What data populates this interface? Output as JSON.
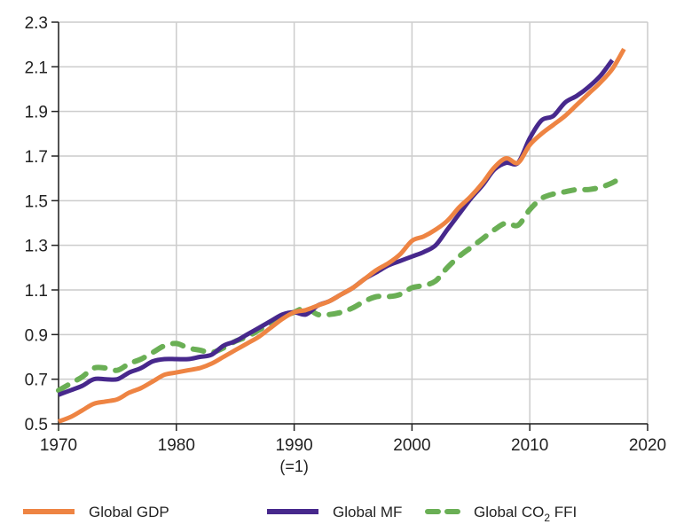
{
  "chart_data": {
    "type": "line",
    "title": "",
    "xlabel": "",
    "ylabel": "",
    "xlim": [
      1970,
      2020
    ],
    "ylim": [
      0.5,
      2.3
    ],
    "x_ticks": [
      1970,
      1980,
      1990,
      2000,
      2010,
      2020
    ],
    "x_tick_labels": [
      "1970",
      "1980",
      "1990",
      "2000",
      "2010",
      "2020"
    ],
    "x_tick_annotation": {
      "x": 1990,
      "text": "(=1)"
    },
    "y_ticks": [
      0.5,
      0.7,
      0.9,
      1.1,
      1.3,
      1.5,
      1.7,
      1.9,
      2.1,
      2.3
    ],
    "y_tick_labels": [
      "0.5",
      "0.7",
      "0.9",
      "1.1",
      "1.3",
      "1.5",
      "1.7",
      "1.9",
      "2.1",
      "2.3"
    ],
    "grid": true,
    "legend_position": "bottom",
    "series": [
      {
        "name": "Global GDP",
        "color": "#ee8443",
        "style": "solid",
        "x_start": 1970,
        "values": [
          0.51,
          0.53,
          0.56,
          0.59,
          0.6,
          0.61,
          0.64,
          0.66,
          0.69,
          0.72,
          0.73,
          0.74,
          0.75,
          0.77,
          0.8,
          0.83,
          0.86,
          0.89,
          0.93,
          0.97,
          1.0,
          1.01,
          1.03,
          1.05,
          1.08,
          1.11,
          1.15,
          1.19,
          1.22,
          1.26,
          1.32,
          1.34,
          1.37,
          1.41,
          1.47,
          1.52,
          1.58,
          1.65,
          1.69,
          1.67,
          1.75,
          1.8,
          1.84,
          1.88,
          1.93,
          1.98,
          2.03,
          2.09,
          2.18
        ]
      },
      {
        "name": "Global MF",
        "color": "#47288c",
        "style": "solid",
        "x_start": 1970,
        "values": [
          0.63,
          0.65,
          0.67,
          0.7,
          0.7,
          0.7,
          0.73,
          0.75,
          0.78,
          0.79,
          0.79,
          0.79,
          0.8,
          0.81,
          0.85,
          0.87,
          0.9,
          0.93,
          0.96,
          0.99,
          1.0,
          0.99,
          1.03,
          1.05,
          1.08,
          1.11,
          1.15,
          1.18,
          1.21,
          1.23,
          1.25,
          1.27,
          1.3,
          1.37,
          1.44,
          1.51,
          1.57,
          1.64,
          1.67,
          1.67,
          1.78,
          1.86,
          1.88,
          1.94,
          1.97,
          2.01,
          2.06,
          2.13
        ]
      },
      {
        "name": "Global CO2 FFI",
        "name_parts": [
          "Global CO",
          "2",
          " FFI"
        ],
        "color": "#6aaf55",
        "style": "dashed",
        "x_start": 1970,
        "values": [
          0.65,
          0.68,
          0.71,
          0.75,
          0.75,
          0.74,
          0.77,
          0.79,
          0.82,
          0.85,
          0.86,
          0.84,
          0.83,
          0.82,
          0.84,
          0.87,
          0.89,
          0.92,
          0.95,
          0.98,
          1.0,
          1.02,
          0.99,
          0.99,
          1.0,
          1.02,
          1.05,
          1.07,
          1.07,
          1.08,
          1.11,
          1.12,
          1.14,
          1.2,
          1.25,
          1.29,
          1.33,
          1.37,
          1.4,
          1.39,
          1.46,
          1.51,
          1.53,
          1.54,
          1.55,
          1.55,
          1.56,
          1.58,
          1.61
        ]
      }
    ]
  }
}
